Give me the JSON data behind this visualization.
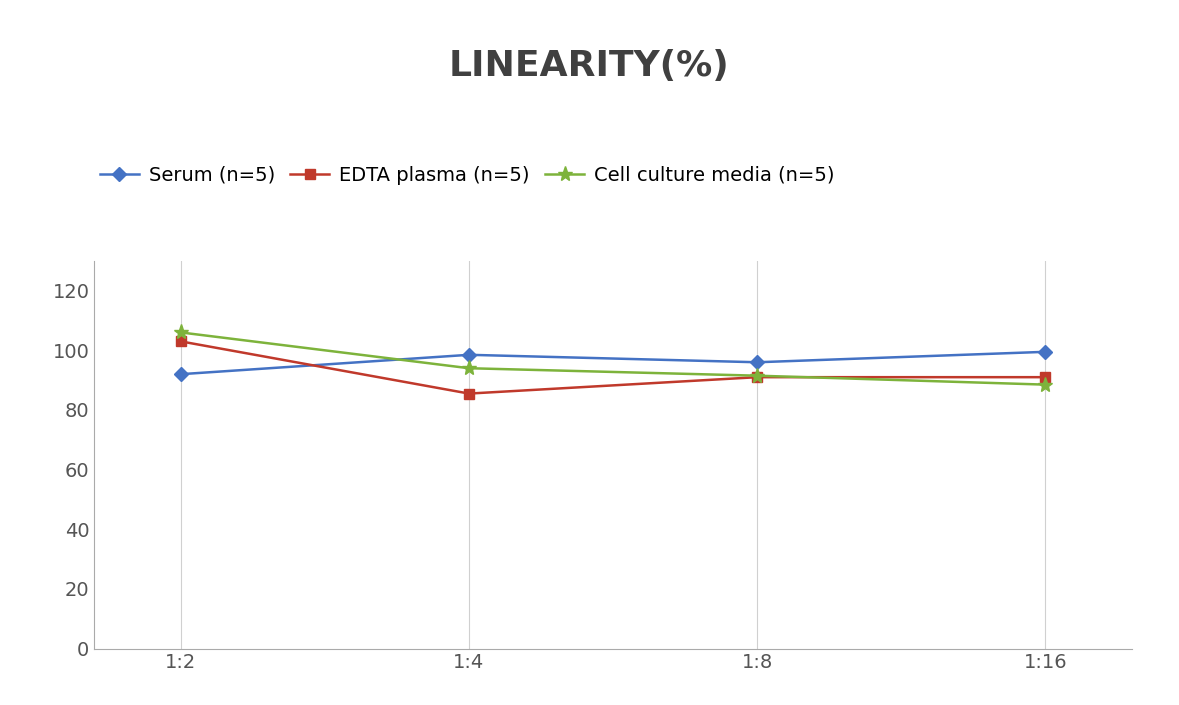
{
  "title": "LINEARITY(%)",
  "x_labels": [
    "1:2",
    "1:4",
    "1:8",
    "1:16"
  ],
  "series": [
    {
      "label": "Serum (n=5)",
      "values": [
        92,
        98.5,
        96,
        99.5
      ],
      "color": "#4472C4",
      "marker": "D",
      "markersize": 7,
      "linewidth": 1.8
    },
    {
      "label": "EDTA plasma (n=5)",
      "values": [
        103,
        85.5,
        91,
        91
      ],
      "color": "#C0392B",
      "marker": "s",
      "markersize": 7,
      "linewidth": 1.8
    },
    {
      "label": "Cell culture media (n=5)",
      "values": [
        106,
        94,
        91.5,
        88.5
      ],
      "color": "#7DB33B",
      "marker": "*",
      "markersize": 11,
      "linewidth": 1.8
    }
  ],
  "ylim": [
    0,
    130
  ],
  "yticks": [
    0,
    20,
    40,
    60,
    80,
    100,
    120
  ],
  "background_color": "#ffffff",
  "title_fontsize": 26,
  "legend_fontsize": 14,
  "tick_fontsize": 14,
  "grid_color": "#d0d0d0",
  "grid_linewidth": 0.8,
  "title_color": "#404040"
}
